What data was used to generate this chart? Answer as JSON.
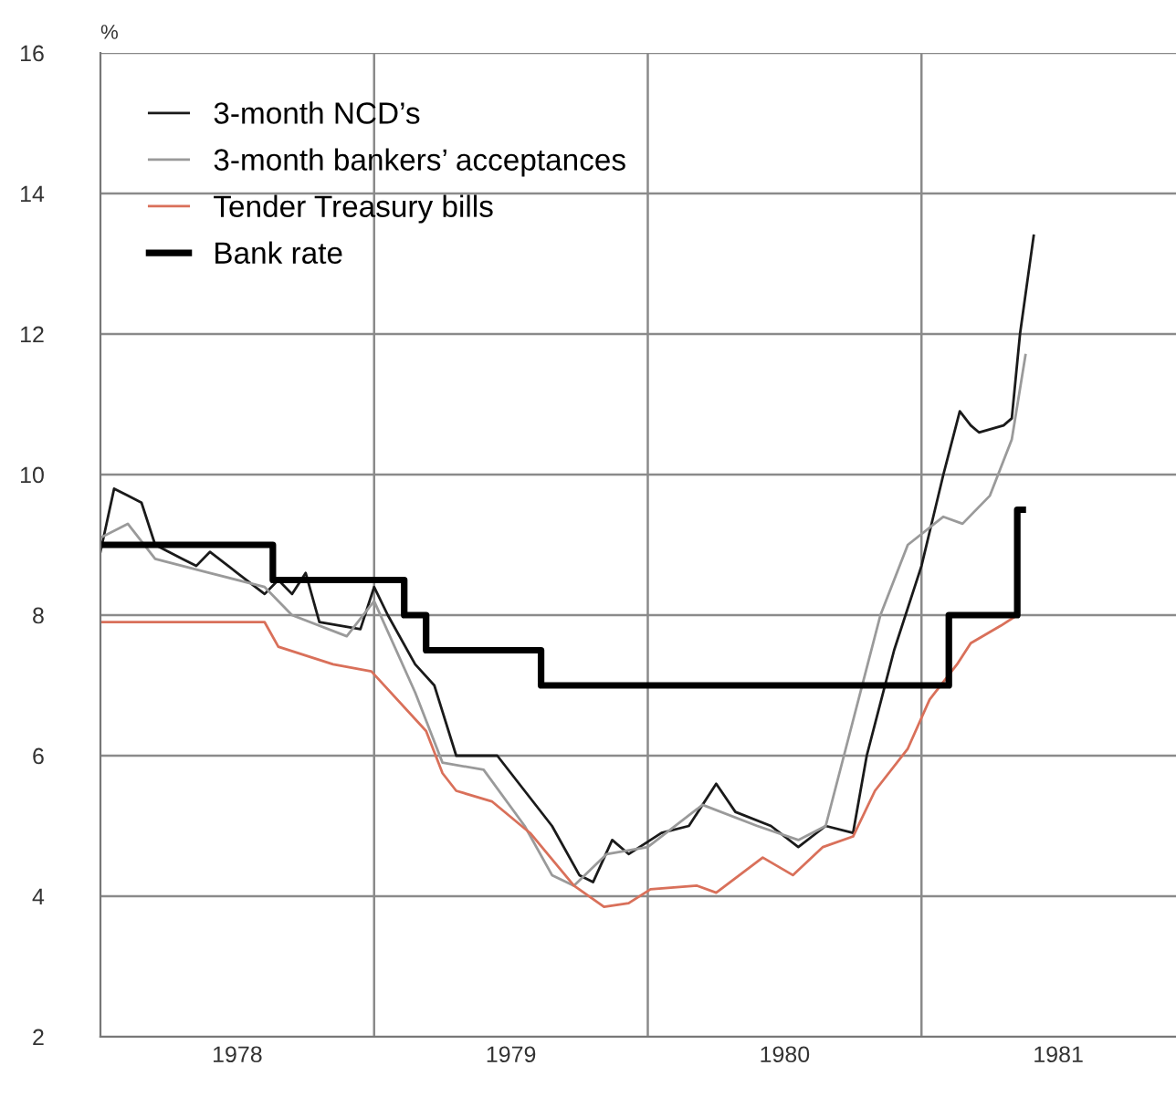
{
  "chart_data": {
    "type": "line",
    "ylabel": "%",
    "ylim": [
      2,
      16
    ],
    "yticks": [
      2,
      4,
      6,
      8,
      10,
      12,
      14,
      16
    ],
    "xlim": [
      1978,
      1981.93
    ],
    "xticks": [
      {
        "value": 1978.5,
        "label": "1978"
      },
      {
        "value": 1979,
        "label": null
      },
      {
        "value": 1979.5,
        "label": "1979"
      },
      {
        "value": 1980,
        "label": null
      },
      {
        "value": 1980.5,
        "label": "1980"
      },
      {
        "value": 1981,
        "label": null
      },
      {
        "value": 1981.5,
        "label": "1981"
      }
    ],
    "grid": true,
    "legend": "top left",
    "series": [
      {
        "name": "3-month NCD’s",
        "color": "#1a1a1a",
        "x": [
          1978.0,
          1978.05,
          1978.1,
          1978.15,
          1978.2,
          1978.3,
          1978.35,
          1978.4,
          1978.5,
          1978.6,
          1978.65,
          1978.7,
          1978.75,
          1978.8,
          1978.95,
          1979.0,
          1979.05,
          1979.15,
          1979.22,
          1979.3,
          1979.45,
          1979.55,
          1979.65,
          1979.75,
          1979.8,
          1979.87,
          1979.93,
          1980.05,
          1980.15,
          1980.25,
          1980.32,
          1980.45,
          1980.55,
          1980.65,
          1980.75,
          1980.8,
          1980.9,
          1981.0,
          1981.08,
          1981.14,
          1981.18,
          1981.21,
          1981.3,
          1981.33,
          1981.36,
          1981.41
        ],
        "values": [
          8.9,
          9.8,
          9.7,
          9.6,
          9.0,
          8.8,
          8.7,
          8.9,
          8.6,
          8.3,
          8.5,
          8.3,
          8.6,
          7.9,
          7.8,
          8.4,
          8.0,
          7.3,
          7.0,
          6.0,
          6.0,
          5.5,
          5.0,
          4.3,
          4.2,
          4.8,
          4.6,
          4.9,
          5.0,
          5.6,
          5.2,
          5.0,
          4.7,
          5.0,
          4.9,
          6.0,
          7.5,
          8.7,
          10.0,
          10.9,
          10.7,
          10.6,
          10.7,
          10.8,
          12.0,
          13.4
        ]
      },
      {
        "name": "3-month bankers’ acceptances",
        "color": "#9a9a9a",
        "x": [
          1978.0,
          1978.1,
          1978.2,
          1978.4,
          1978.6,
          1978.7,
          1978.9,
          1979.0,
          1979.15,
          1979.25,
          1979.4,
          1979.55,
          1979.65,
          1979.73,
          1979.85,
          1980.0,
          1980.2,
          1980.4,
          1980.55,
          1980.65,
          1980.75,
          1980.85,
          1980.95,
          1981.08,
          1981.15,
          1981.25,
          1981.33,
          1981.38
        ],
        "values": [
          9.1,
          9.3,
          8.8,
          8.6,
          8.4,
          8.0,
          7.7,
          8.2,
          6.9,
          5.9,
          5.8,
          5.0,
          4.3,
          4.15,
          4.6,
          4.7,
          5.3,
          5.0,
          4.8,
          5.0,
          6.5,
          8.0,
          9.0,
          9.4,
          9.3,
          9.7,
          10.5,
          11.7
        ]
      },
      {
        "name": "Tender Treasury bills",
        "color": "#d9705a",
        "x": [
          1978.0,
          1978.6,
          1978.65,
          1978.85,
          1978.99,
          1979.19,
          1979.25,
          1979.3,
          1979.43,
          1979.57,
          1979.73,
          1979.84,
          1979.93,
          1980.01,
          1980.18,
          1980.25,
          1980.42,
          1980.53,
          1980.64,
          1980.75,
          1980.83,
          1980.95,
          1981.03,
          1981.13,
          1981.18,
          1981.29,
          1981.35
        ],
        "values": [
          7.9,
          7.9,
          7.55,
          7.3,
          7.2,
          6.35,
          5.75,
          5.5,
          5.35,
          4.9,
          4.15,
          3.85,
          3.9,
          4.1,
          4.15,
          4.05,
          4.55,
          4.3,
          4.7,
          4.85,
          5.5,
          6.1,
          6.8,
          7.3,
          7.6,
          7.85,
          8.0
        ]
      },
      {
        "name": "Bank rate",
        "color": "#000000",
        "type": "step",
        "x": [
          1978.0,
          1978.63,
          1979.11,
          1979.19,
          1979.61,
          1981.1,
          1981.35,
          1981.37
        ],
        "values": [
          9.0,
          8.5,
          8.0,
          7.5,
          7.0,
          8.0,
          9.5,
          9.5
        ]
      }
    ]
  }
}
